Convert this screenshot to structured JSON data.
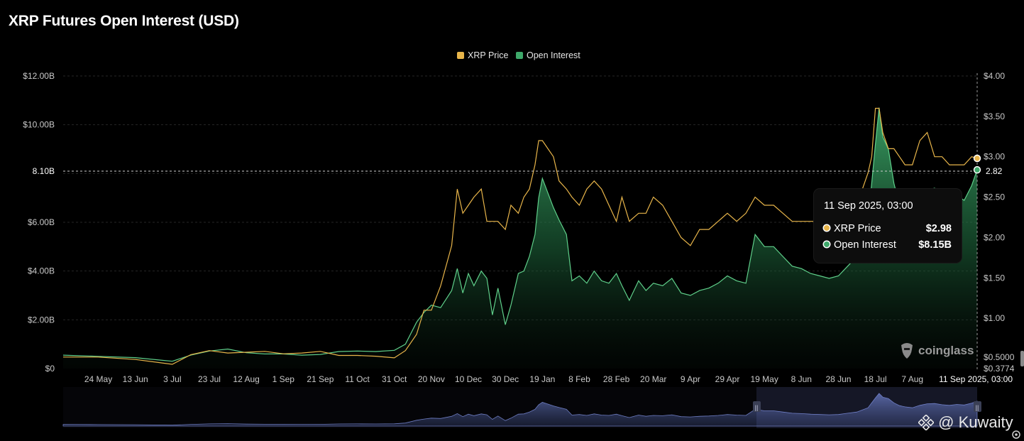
{
  "title": "XRP Futures Open Interest (USD)",
  "legend": [
    {
      "label": "XRP Price",
      "color": "#e8b54a"
    },
    {
      "label": "Open Interest",
      "color": "#3ea86a"
    }
  ],
  "crosshair": {
    "left_label": "8.10B",
    "right_label": "2.82"
  },
  "tooltip": {
    "header": "11 Sep 2025, 03:00",
    "rows": [
      {
        "label": "XRP Price",
        "value": "$2.98",
        "color": "#e8b54a"
      },
      {
        "label": "Open Interest",
        "value": "$8.15B",
        "color": "#3ea86a"
      }
    ]
  },
  "watermark": "coinglass",
  "credit": "@ Kuwaity",
  "chart_data": {
    "type": "area",
    "title": "XRP Futures Open Interest (USD)",
    "y_left": {
      "ticks": [
        "$0",
        "$2.00B",
        "$4.00B",
        "$6.00B",
        "$8.00B",
        "$10.00B",
        "$12.00B"
      ],
      "values": [
        0,
        2,
        4,
        6,
        8,
        10,
        12
      ],
      "ylim": [
        0,
        12
      ],
      "unit": "B USD"
    },
    "y_right": {
      "ticks": [
        "$0.3774",
        "$0.5000",
        "$1.00",
        "$1.50",
        "$2.00",
        "$2.50",
        "$3.00",
        "$3.50",
        "$4.00"
      ],
      "values": [
        0.3774,
        0.5,
        1,
        1.5,
        2,
        2.5,
        3,
        3.5,
        4
      ],
      "ylim": [
        0.3774,
        4.0
      ]
    },
    "x_ticks": [
      "24 May",
      "13 Jun",
      "3 Jul",
      "23 Jul",
      "12 Aug",
      "1 Sep",
      "21 Sep",
      "11 Oct",
      "31 Oct",
      "20 Nov",
      "10 Dec",
      "30 Dec",
      "19 Jan",
      "8 Feb",
      "28 Feb",
      "20 Mar",
      "9 Apr",
      "29 Apr",
      "19 May",
      "8 Jun",
      "28 Jun",
      "18 Jul",
      "7 Aug",
      "11 Sep 2025, 03:00"
    ],
    "grid": true,
    "legend_position": "top-center",
    "series": [
      {
        "name": "Open Interest",
        "axis": "left",
        "x": [
          "2024-05-05",
          "2024-05-24",
          "2024-06-13",
          "2024-07-03",
          "2024-07-13",
          "2024-07-23",
          "2024-08-02",
          "2024-08-12",
          "2024-08-22",
          "2024-09-01",
          "2024-09-11",
          "2024-09-21",
          "2024-10-01",
          "2024-10-11",
          "2024-10-21",
          "2024-10-31",
          "2024-11-06",
          "2024-11-12",
          "2024-11-16",
          "2024-11-20",
          "2024-11-25",
          "2024-12-01",
          "2024-12-04",
          "2024-12-07",
          "2024-12-10",
          "2024-12-13",
          "2024-12-17",
          "2024-12-20",
          "2024-12-23",
          "2024-12-26",
          "2024-12-30",
          "2025-01-02",
          "2025-01-06",
          "2025-01-09",
          "2025-01-12",
          "2025-01-15",
          "2025-01-17",
          "2025-01-19",
          "2025-01-22",
          "2025-01-25",
          "2025-01-28",
          "2025-02-01",
          "2025-02-04",
          "2025-02-08",
          "2025-02-12",
          "2025-02-16",
          "2025-02-20",
          "2025-02-24",
          "2025-02-28",
          "2025-03-03",
          "2025-03-07",
          "2025-03-12",
          "2025-03-16",
          "2025-03-20",
          "2025-03-25",
          "2025-03-30",
          "2025-04-04",
          "2025-04-09",
          "2025-04-14",
          "2025-04-19",
          "2025-04-24",
          "2025-04-29",
          "2025-05-04",
          "2025-05-09",
          "2025-05-14",
          "2025-05-19",
          "2025-05-24",
          "2025-05-29",
          "2025-06-03",
          "2025-06-08",
          "2025-06-13",
          "2025-06-18",
          "2025-06-23",
          "2025-06-28",
          "2025-07-03",
          "2025-07-08",
          "2025-07-11",
          "2025-07-14",
          "2025-07-16",
          "2025-07-18",
          "2025-07-20",
          "2025-07-22",
          "2025-07-25",
          "2025-07-28",
          "2025-07-31",
          "2025-08-03",
          "2025-08-07",
          "2025-08-11",
          "2025-08-15",
          "2025-08-19",
          "2025-08-23",
          "2025-08-27",
          "2025-08-31",
          "2025-09-04",
          "2025-09-08",
          "2025-09-11"
        ],
        "y": [
          0.55,
          0.5,
          0.45,
          0.3,
          0.55,
          0.72,
          0.8,
          0.65,
          0.6,
          0.6,
          0.55,
          0.58,
          0.7,
          0.72,
          0.7,
          0.75,
          1.0,
          1.9,
          2.3,
          2.6,
          2.5,
          3.2,
          4.1,
          3.1,
          3.9,
          3.4,
          4.0,
          3.7,
          2.2,
          3.3,
          1.8,
          2.6,
          3.9,
          4.0,
          4.6,
          5.5,
          7.0,
          7.8,
          7.2,
          6.6,
          6.1,
          5.5,
          3.6,
          3.8,
          3.5,
          4.0,
          3.6,
          3.5,
          3.9,
          3.4,
          2.8,
          3.6,
          3.2,
          3.5,
          3.4,
          3.7,
          3.1,
          3.0,
          3.2,
          3.3,
          3.5,
          3.8,
          3.6,
          3.5,
          5.5,
          5.0,
          5.0,
          4.6,
          4.2,
          4.1,
          3.9,
          3.8,
          3.7,
          3.8,
          4.2,
          4.6,
          5.3,
          6.0,
          7.6,
          9.2,
          10.7,
          9.5,
          9.0,
          7.6,
          6.7,
          6.3,
          6.0,
          6.8,
          7.3,
          7.4,
          7.0,
          6.8,
          7.1,
          6.9,
          7.5,
          8.15
        ]
      },
      {
        "name": "XRP Price",
        "axis": "right",
        "x": [
          "2024-05-05",
          "2024-05-24",
          "2024-06-13",
          "2024-07-03",
          "2024-07-13",
          "2024-07-23",
          "2024-08-02",
          "2024-08-12",
          "2024-08-22",
          "2024-09-01",
          "2024-09-11",
          "2024-09-21",
          "2024-10-01",
          "2024-10-11",
          "2024-10-21",
          "2024-10-31",
          "2024-11-06",
          "2024-11-12",
          "2024-11-16",
          "2024-11-20",
          "2024-11-25",
          "2024-12-01",
          "2024-12-04",
          "2024-12-07",
          "2024-12-10",
          "2024-12-13",
          "2024-12-17",
          "2024-12-20",
          "2024-12-23",
          "2024-12-26",
          "2024-12-30",
          "2025-01-02",
          "2025-01-06",
          "2025-01-09",
          "2025-01-12",
          "2025-01-15",
          "2025-01-17",
          "2025-01-19",
          "2025-01-22",
          "2025-01-25",
          "2025-01-28",
          "2025-02-01",
          "2025-02-04",
          "2025-02-08",
          "2025-02-12",
          "2025-02-16",
          "2025-02-20",
          "2025-02-24",
          "2025-02-28",
          "2025-03-03",
          "2025-03-07",
          "2025-03-12",
          "2025-03-16",
          "2025-03-20",
          "2025-03-25",
          "2025-03-30",
          "2025-04-04",
          "2025-04-09",
          "2025-04-14",
          "2025-04-19",
          "2025-04-24",
          "2025-04-29",
          "2025-05-04",
          "2025-05-09",
          "2025-05-14",
          "2025-05-19",
          "2025-05-24",
          "2025-05-29",
          "2025-06-03",
          "2025-06-08",
          "2025-06-13",
          "2025-06-18",
          "2025-06-23",
          "2025-06-28",
          "2025-07-03",
          "2025-07-08",
          "2025-07-11",
          "2025-07-14",
          "2025-07-16",
          "2025-07-18",
          "2025-07-20",
          "2025-07-22",
          "2025-07-25",
          "2025-07-28",
          "2025-07-31",
          "2025-08-03",
          "2025-08-07",
          "2025-08-11",
          "2025-08-15",
          "2025-08-19",
          "2025-08-23",
          "2025-08-27",
          "2025-08-31",
          "2025-09-04",
          "2025-09-08",
          "2025-09-11"
        ],
        "y": [
          0.52,
          0.52,
          0.49,
          0.43,
          0.55,
          0.6,
          0.57,
          0.58,
          0.59,
          0.56,
          0.57,
          0.59,
          0.54,
          0.54,
          0.53,
          0.51,
          0.6,
          0.8,
          1.1,
          1.1,
          1.4,
          1.9,
          2.6,
          2.3,
          2.4,
          2.5,
          2.6,
          2.2,
          2.2,
          2.2,
          2.1,
          2.4,
          2.3,
          2.5,
          2.6,
          2.9,
          3.2,
          3.2,
          3.1,
          3.0,
          2.7,
          2.6,
          2.5,
          2.4,
          2.6,
          2.7,
          2.6,
          2.4,
          2.2,
          2.5,
          2.2,
          2.3,
          2.3,
          2.5,
          2.4,
          2.2,
          2.0,
          1.9,
          2.1,
          2.1,
          2.2,
          2.3,
          2.2,
          2.3,
          2.5,
          2.4,
          2.4,
          2.3,
          2.2,
          2.2,
          2.2,
          2.2,
          2.1,
          2.2,
          2.3,
          2.4,
          2.6,
          2.8,
          3.0,
          3.6,
          3.6,
          3.3,
          3.1,
          3.1,
          3.0,
          2.9,
          2.9,
          3.2,
          3.3,
          3.0,
          3.0,
          2.9,
          2.9,
          2.9,
          3.0,
          2.98
        ]
      }
    ]
  }
}
